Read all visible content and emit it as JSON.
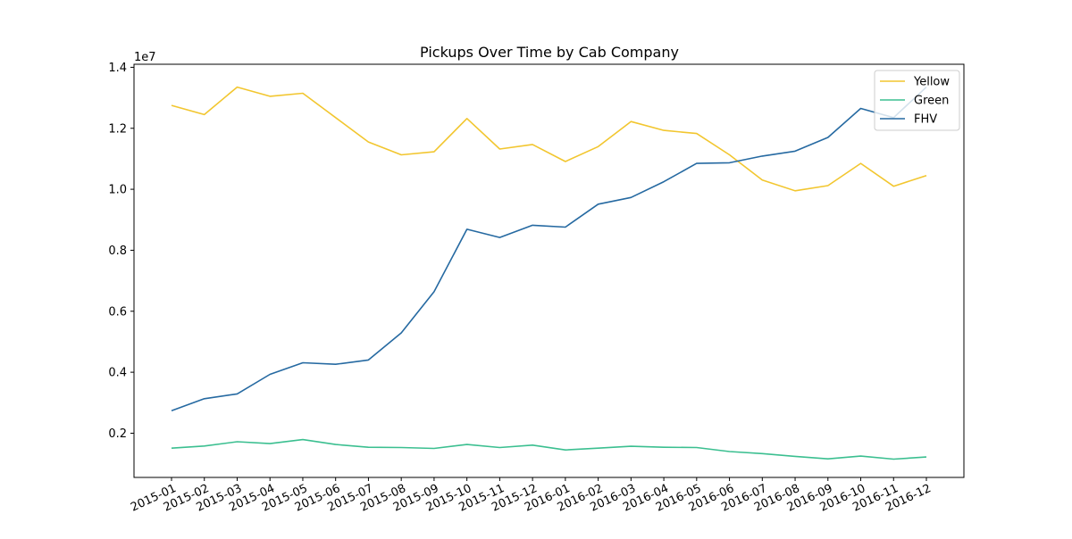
{
  "chart_data": {
    "type": "line",
    "title": "Pickups Over Time by Cab Company",
    "xlabel": "",
    "ylabel": "",
    "y_scale_label": "1e7",
    "categories": [
      "2015-01",
      "2015-02",
      "2015-03",
      "2015-04",
      "2015-05",
      "2015-06",
      "2015-07",
      "2015-08",
      "2015-09",
      "2015-10",
      "2015-11",
      "2015-12",
      "2016-01",
      "2016-02",
      "2016-03",
      "2016-04",
      "2016-05",
      "2016-06",
      "2016-07",
      "2016-08",
      "2016-09",
      "2016-10",
      "2016-11",
      "2016-12"
    ],
    "y_ticks": [
      0.2,
      0.4,
      0.6,
      0.8,
      1.0,
      1.2,
      1.4
    ],
    "y_tick_labels": [
      "0.2",
      "0.4",
      "0.6",
      "0.8",
      "1.0",
      "1.2",
      "1.4"
    ],
    "ylim": [
      0.055,
      1.41
    ],
    "units": "1e7 pickups",
    "grid": false,
    "legend_position": "top-right",
    "series": [
      {
        "name": "Yellow",
        "color": "#f2c62f",
        "values": [
          1.275,
          1.245,
          1.335,
          1.305,
          1.315,
          1.235,
          1.155,
          1.113,
          1.123,
          1.232,
          1.132,
          1.147,
          1.091,
          1.14,
          1.222,
          1.193,
          1.183,
          1.113,
          1.03,
          0.995,
          1.012,
          1.085,
          1.01,
          1.045
        ]
      },
      {
        "name": "Green",
        "color": "#3bbf90",
        "values": [
          0.151,
          0.158,
          0.172,
          0.166,
          0.179,
          0.163,
          0.154,
          0.153,
          0.15,
          0.163,
          0.153,
          0.161,
          0.145,
          0.151,
          0.157,
          0.154,
          0.153,
          0.14,
          0.133,
          0.124,
          0.116,
          0.125,
          0.115,
          0.122
        ]
      },
      {
        "name": "FHV",
        "color": "#2569a1",
        "values": [
          0.274,
          0.313,
          0.329,
          0.393,
          0.431,
          0.426,
          0.44,
          0.529,
          0.664,
          0.869,
          0.842,
          0.882,
          0.876,
          0.951,
          0.973,
          1.025,
          1.085,
          1.087,
          1.109,
          1.125,
          1.17,
          1.265,
          1.235,
          1.335
        ]
      }
    ]
  }
}
